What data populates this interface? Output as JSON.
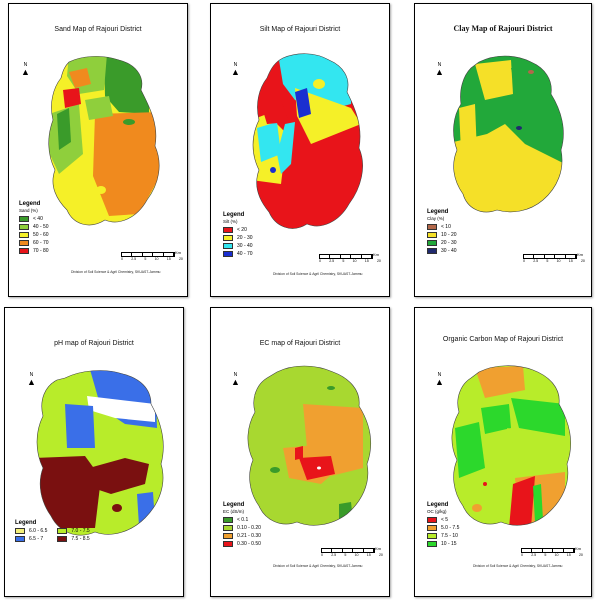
{
  "credit": "Division of Soil Science & Agril Chemistry, SKUAST-Jammu",
  "scale_labels": [
    "0",
    "2.5",
    "5",
    "10",
    "15",
    "20"
  ],
  "scale_unit": "Km",
  "north_label": "N",
  "legend_heading": "Legend",
  "colors": {
    "dark_green": "#3a9b2a",
    "light_green": "#8fcf3c",
    "yellow": "#f5f028",
    "orange": "#f08a1e",
    "red": "#e8141a",
    "cyan": "#33e6f0",
    "blue": "#1a2fd0",
    "brown": "#b2674a",
    "mid_green": "#22a83a",
    "navy": "#202a6e",
    "lime": "#b8ec2a",
    "ph_yellow": "#f4f07a",
    "ph_blue": "#3a6fe8",
    "maroon": "#7a1010",
    "orange2": "#f0a030",
    "bright_green": "#2cd82c"
  },
  "maps": [
    {
      "id": "sand",
      "title": "Sand Map of Rajouri District",
      "legend_sub": "Sand (%)",
      "style": "normal",
      "items": [
        {
          "label": "< 40",
          "color": "#3a9b2a"
        },
        {
          "label": "40 - 50",
          "color": "#8fcf3c"
        },
        {
          "label": "50 - 60",
          "color": "#f5f028"
        },
        {
          "label": "60 - 70",
          "color": "#f08a1e"
        },
        {
          "label": "70 - 80",
          "color": "#e8141a"
        }
      ]
    },
    {
      "id": "silt",
      "title": "Silt Map of Rajouri District",
      "legend_sub": "Silt (%)",
      "style": "normal",
      "items": [
        {
          "label": "< 20",
          "color": "#e8141a"
        },
        {
          "label": "20 - 30",
          "color": "#f5f028"
        },
        {
          "label": "30 - 40",
          "color": "#33e6f0"
        },
        {
          "label": "40 - 70",
          "color": "#1a2fd0"
        }
      ]
    },
    {
      "id": "clay",
      "title": "Clay Map of Rajouri District",
      "legend_sub": "Clay (%)",
      "style": "big",
      "items": [
        {
          "label": "< 10",
          "color": "#b2674a"
        },
        {
          "label": "10 - 20",
          "color": "#f5e028"
        },
        {
          "label": "20 - 30",
          "color": "#22a83a"
        },
        {
          "label": "30 - 40",
          "color": "#202a6e"
        }
      ]
    },
    {
      "id": "ph",
      "title": "pH map of Rajouri District",
      "legend_sub": "",
      "style": "normal",
      "items": [
        {
          "label": "6.0 - 6.5",
          "color": "#f4f07a"
        },
        {
          "label": "6.5 - 7",
          "color": "#3a6fe8"
        },
        {
          "label": "7.0 - 7.5",
          "color": "#b8ec2a"
        },
        {
          "label": "7.5 - 8.5",
          "color": "#7a1010"
        }
      ]
    },
    {
      "id": "ec",
      "title": "EC map of Rajouri District",
      "legend_sub": "EC (dS/m)",
      "style": "normal",
      "items": [
        {
          "label": "< 0.1",
          "color": "#3a9b2a"
        },
        {
          "label": "0.10 - 0.20",
          "color": "#a8d830"
        },
        {
          "label": "0.21 - 0.30",
          "color": "#f0a030"
        },
        {
          "label": "0.30 - 0.50",
          "color": "#e8141a"
        }
      ]
    },
    {
      "id": "oc",
      "title": "Organic Carbon Map of Rajouri District",
      "legend_sub": "OC (g/kg)",
      "style": "normal",
      "items": [
        {
          "label": "< 5",
          "color": "#e8141a"
        },
        {
          "label": "5.0 - 7.5",
          "color": "#f0a030"
        },
        {
          "label": "7.5 - 10",
          "color": "#b8ec2a"
        },
        {
          "label": "10 - 15",
          "color": "#2cd82c"
        }
      ]
    }
  ]
}
